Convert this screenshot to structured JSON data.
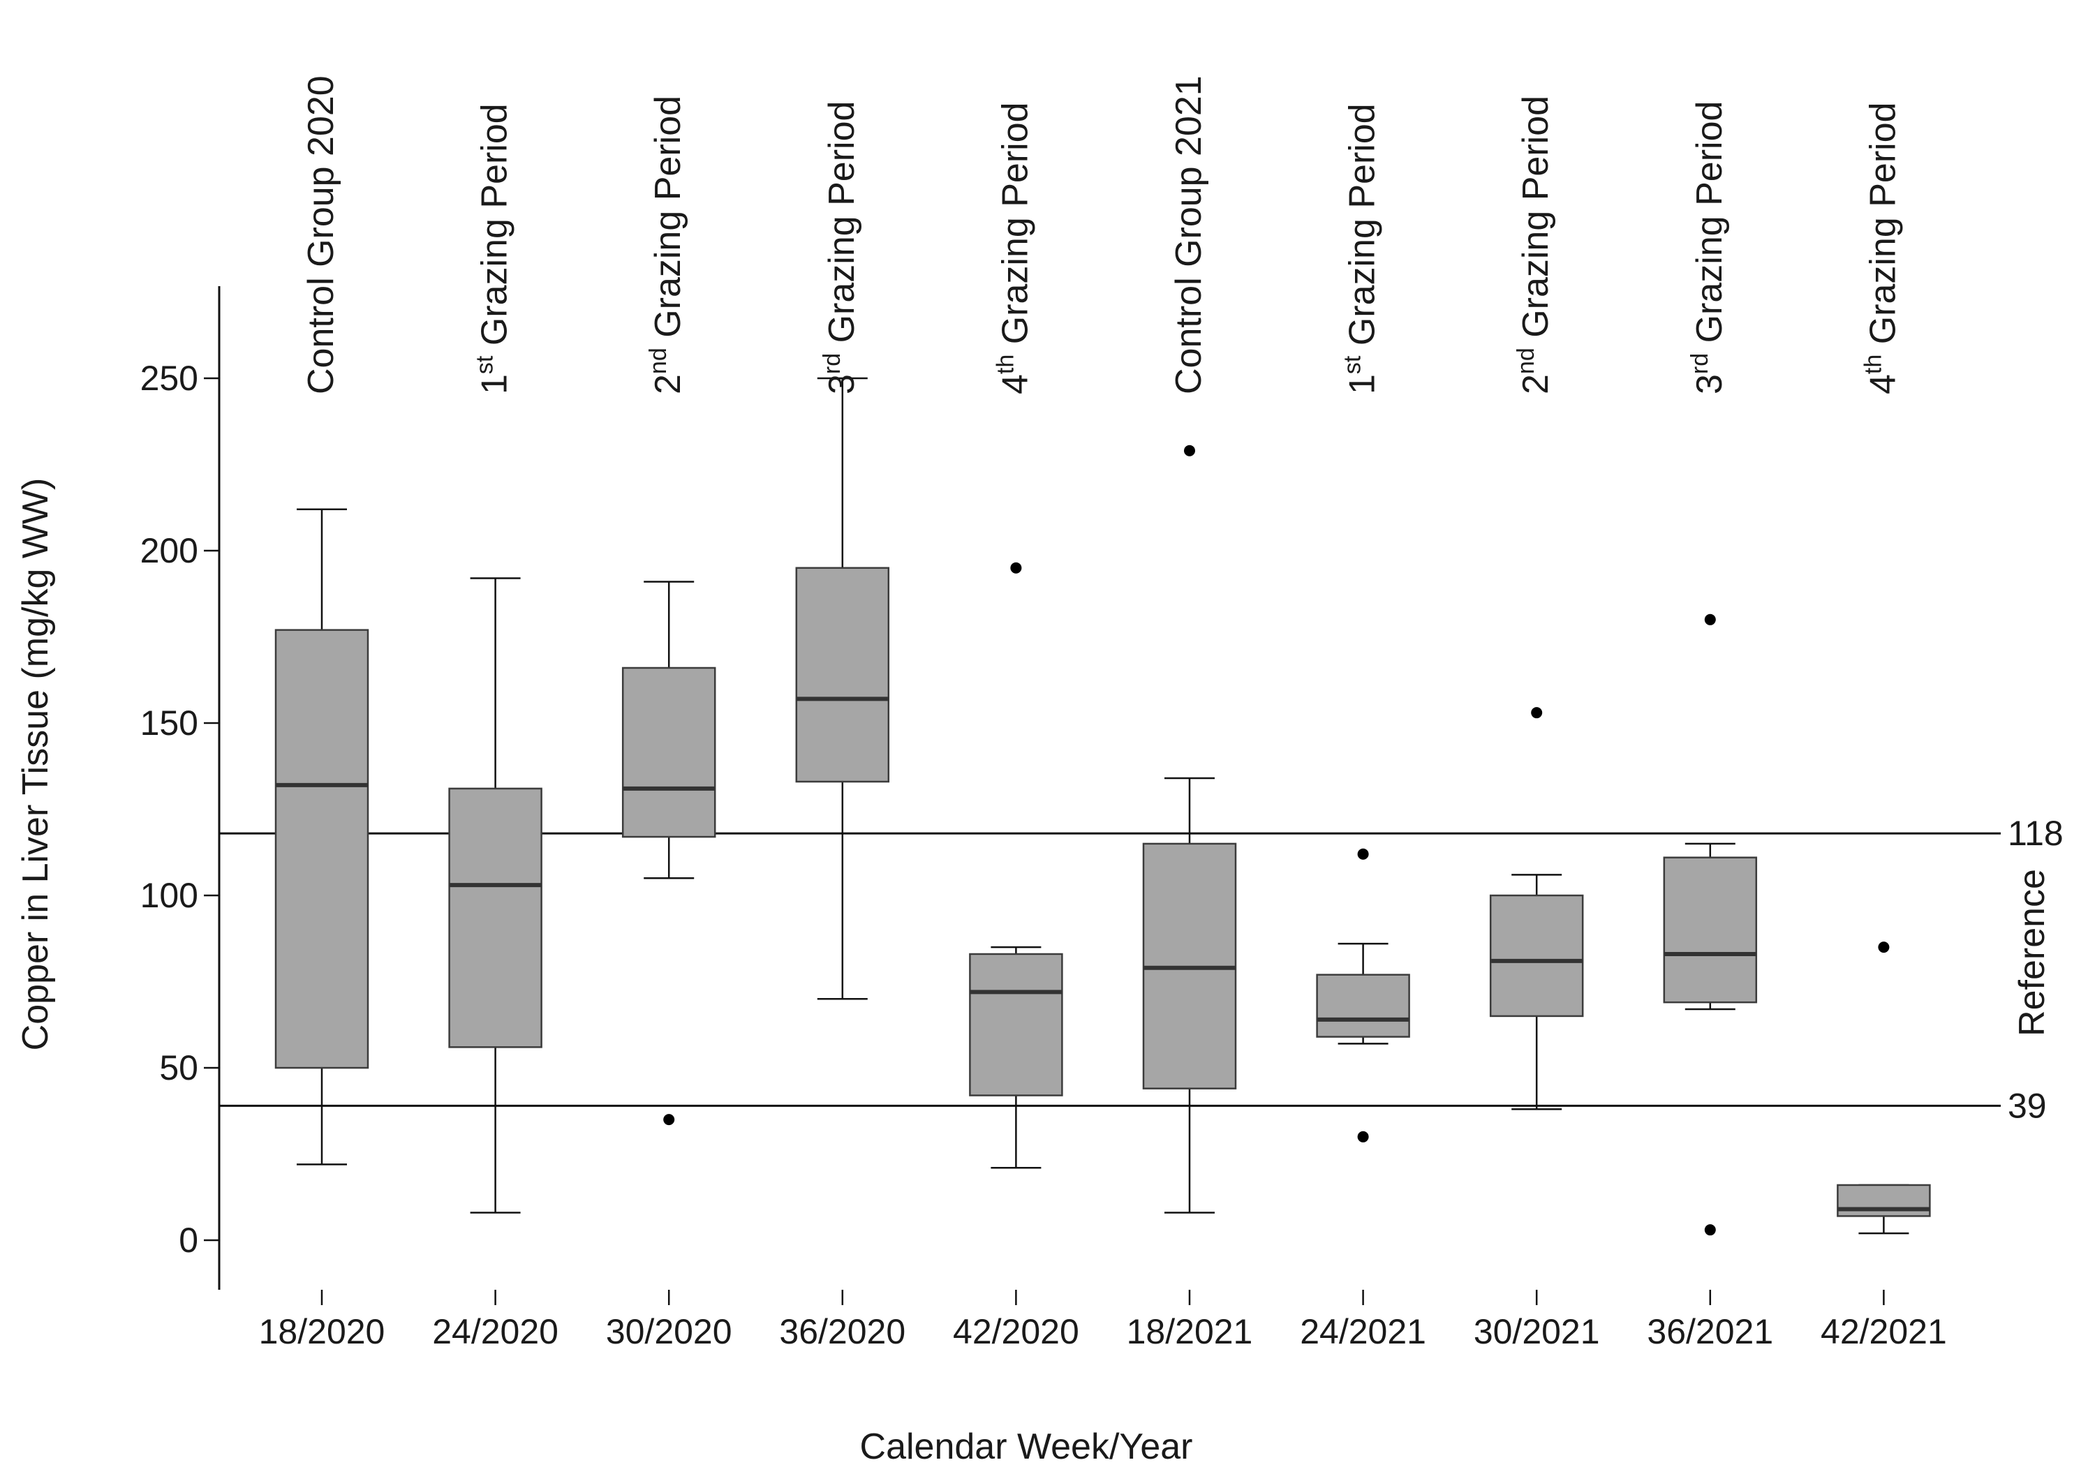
{
  "chart_data": {
    "type": "boxplot",
    "xlabel": "Calendar Week/Year",
    "ylabel": "Copper in Liver Tissue (mg/kg WW)",
    "ylim": [
      -15,
      275
    ],
    "yticks": [
      0,
      50,
      100,
      150,
      200,
      250
    ],
    "categories": [
      "18/2020",
      "24/2020",
      "30/2020",
      "36/2020",
      "42/2020",
      "18/2021",
      "24/2021",
      "30/2021",
      "36/2021",
      "42/2021"
    ],
    "group_labels": [
      {
        "base": "Control Group 2020",
        "num": "",
        "sup": ""
      },
      {
        "base": " Grazing Period",
        "num": "1",
        "sup": "st"
      },
      {
        "base": " Grazing Period",
        "num": "2",
        "sup": "nd"
      },
      {
        "base": " Grazing Period",
        "num": "3",
        "sup": "rd"
      },
      {
        "base": " Grazing Period",
        "num": "4",
        "sup": "th"
      },
      {
        "base": "Control Group 2021",
        "num": "",
        "sup": ""
      },
      {
        "base": " Grazing Period",
        "num": "1",
        "sup": "st"
      },
      {
        "base": " Grazing Period",
        "num": "2",
        "sup": "nd"
      },
      {
        "base": " Grazing Period",
        "num": "3",
        "sup": "rd"
      },
      {
        "base": " Grazing Period",
        "num": "4",
        "sup": "th"
      }
    ],
    "boxes": [
      {
        "whisker_low": 22,
        "q1": 50,
        "median": 132,
        "q3": 177,
        "whisker_high": 212,
        "outliers": []
      },
      {
        "whisker_low": 8,
        "q1": 56,
        "median": 103,
        "q3": 131,
        "whisker_high": 192,
        "outliers": []
      },
      {
        "whisker_low": 105,
        "q1": 117,
        "median": 131,
        "q3": 166,
        "whisker_high": 191,
        "outliers": [
          35
        ]
      },
      {
        "whisker_low": 70,
        "q1": 133,
        "median": 157,
        "q3": 195,
        "whisker_high": 250,
        "outliers": []
      },
      {
        "whisker_low": 21,
        "q1": 42,
        "median": 72,
        "q3": 83,
        "whisker_high": 85,
        "outliers": [
          195
        ]
      },
      {
        "whisker_low": 8,
        "q1": 44,
        "median": 79,
        "q3": 115,
        "whisker_high": 134,
        "outliers": [
          229
        ]
      },
      {
        "whisker_low": 57,
        "q1": 59,
        "median": 64,
        "q3": 77,
        "whisker_high": 86,
        "outliers": [
          112,
          30
        ]
      },
      {
        "whisker_low": 38,
        "q1": 65,
        "median": 81,
        "q3": 100,
        "whisker_high": 106,
        "outliers": [
          153
        ]
      },
      {
        "whisker_low": 67,
        "q1": 69,
        "median": 83,
        "q3": 111,
        "whisker_high": 115,
        "outliers": [
          180,
          3
        ]
      },
      {
        "whisker_low": 2,
        "q1": 7,
        "median": 9,
        "q3": 16,
        "whisker_high": 16,
        "outliers": [
          85
        ]
      }
    ],
    "reference_lines": [
      118,
      39
    ],
    "reference_title": "Reference",
    "colors": {
      "box_fill": "#a6a6a6",
      "box_stroke": "#3c3c3c",
      "median": "#333333",
      "line": "#111111"
    }
  }
}
